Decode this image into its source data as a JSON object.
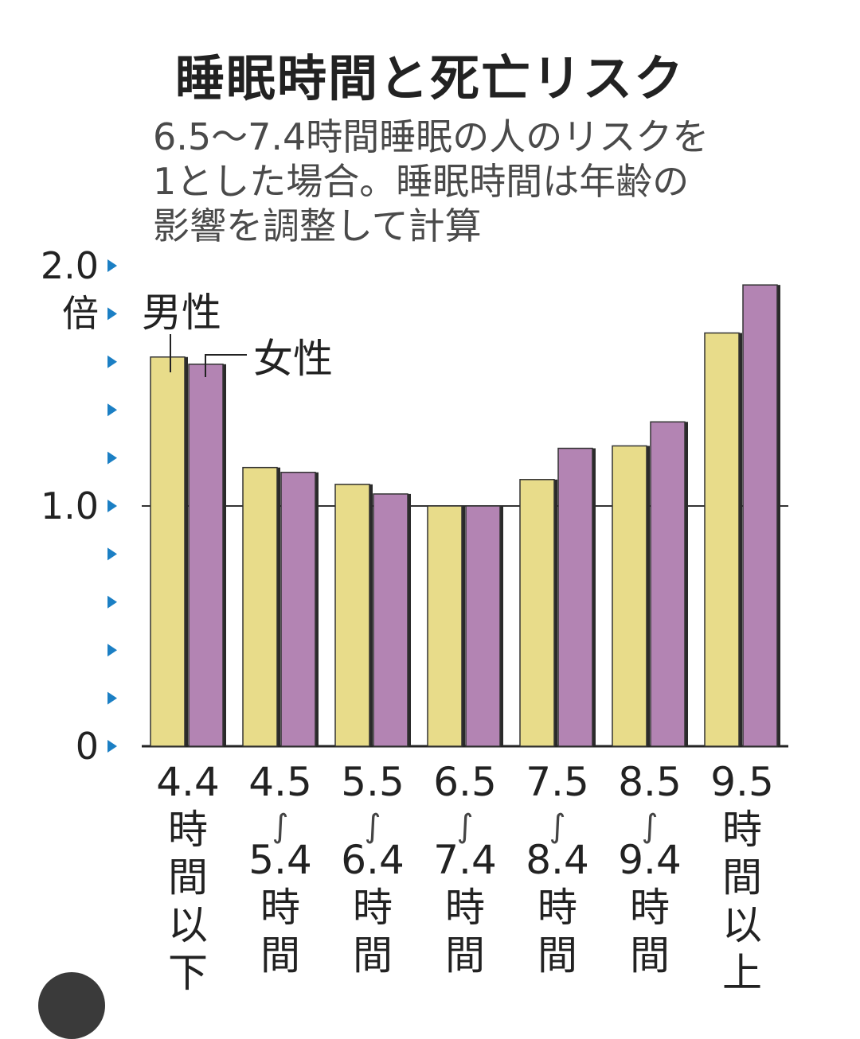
{
  "title": "睡眠時間と死亡リスク",
  "subtitle_lines": [
    "6.5〜7.4時間睡眠の人のリスクを",
    "1とした場合。睡眠時間は年齢の",
    "影響を調整して計算"
  ],
  "colors": {
    "male": "#e8dc8a",
    "female": "#b384b3",
    "tick_marker": "#1b7fc4",
    "reference_line": "#333333"
  },
  "chart_data": {
    "type": "bar",
    "title": "睡眠時間と死亡リスク",
    "ylim": [
      0,
      2.0
    ],
    "y_tick_labels": [
      "2.0",
      "1.0",
      "0"
    ],
    "y_unit": "倍",
    "reference_line": 1.0,
    "categories": [
      [
        "4.4",
        "時",
        "間",
        "以",
        "下"
      ],
      [
        "4.5",
        "∫",
        "5.4",
        "時",
        "間"
      ],
      [
        "5.5",
        "∫",
        "6.4",
        "時",
        "間"
      ],
      [
        "6.5",
        "∫",
        "7.4",
        "時",
        "間"
      ],
      [
        "7.5",
        "∫",
        "8.4",
        "時",
        "間"
      ],
      [
        "8.5",
        "∫",
        "9.4",
        "時",
        "間"
      ],
      [
        "9.5",
        "時",
        "間",
        "以",
        "上"
      ]
    ],
    "series": [
      {
        "name": "男性",
        "values": [
          1.62,
          1.16,
          1.09,
          1.0,
          1.11,
          1.25,
          1.72
        ]
      },
      {
        "name": "女性",
        "values": [
          1.59,
          1.14,
          1.05,
          1.0,
          1.24,
          1.35,
          1.92
        ]
      }
    ]
  }
}
